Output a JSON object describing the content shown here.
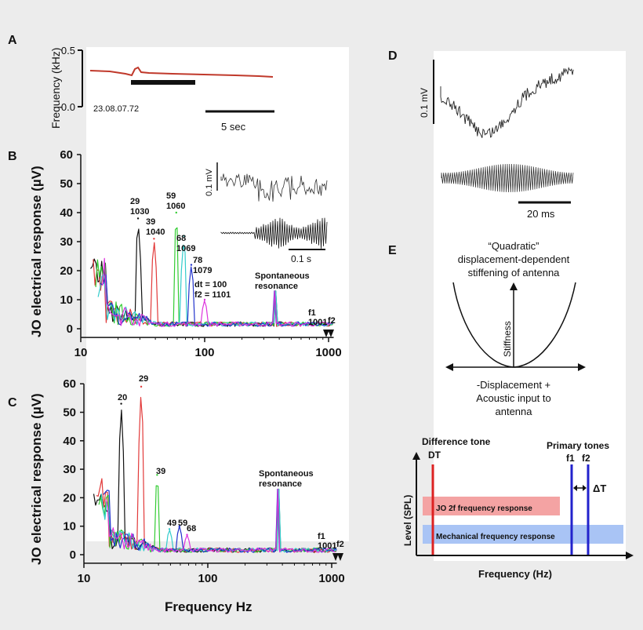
{
  "panels": {
    "A": {
      "letter": "A",
      "ylabel": "Frequency (kHz)",
      "yticks": [
        "0.5",
        "0.0"
      ],
      "recording_id": "23.08.07.72",
      "scale_label": "5 sec",
      "trace_color": "#c0392b"
    },
    "B": {
      "letter": "B",
      "inset_scale_v": "0.1 mV",
      "inset_scale_t": "0.1 s",
      "peak_labels": [
        {
          "n": "29",
          "f": "1030"
        },
        {
          "n": "39",
          "f": "1040"
        },
        {
          "n": "59",
          "f": "1060"
        },
        {
          "n": "68",
          "f": "1069"
        },
        {
          "n": "78",
          "f": "1079"
        }
      ],
      "dt_label": "dt = 100",
      "f2_label": "f2 = 1101",
      "spont_label_1": "Spontaneous",
      "spont_label_2": "resonance",
      "f1_label": "f1",
      "f1_value": "1001",
      "f2_short": "f2"
    },
    "C": {
      "letter": "C",
      "peak_labels": [
        "20",
        "29",
        "39",
        "49",
        "59",
        "68"
      ],
      "spont_label_1": "Spontaneous",
      "spont_label_2": "resonance",
      "f1_label": "f1",
      "f1_value": "1001",
      "f2_short": "f2"
    },
    "D": {
      "letter": "D",
      "scale_v": "0.1 mV",
      "scale_t": "20 ms"
    },
    "E": {
      "letter": "E",
      "title_1": "“Quadratic”",
      "title_2": "displacement-dependent",
      "title_3": "stiffening of antenna",
      "y_axis_label": "Stiffness",
      "x_label_1": "-Displacement +",
      "x_label_2": "Acoustic input to",
      "x_label_3": "antenna",
      "dt_title": "Difference tone",
      "dt_short": "DT",
      "primary_title": "Primary tones",
      "f1": "f1",
      "f2": "f2",
      "delta_t": "ΔT",
      "jo_band": "JO 2f frequency response",
      "mech_band": "Mechanical frequency response",
      "ylabel": "Level (SPL)",
      "xlabel": "Frequency (Hz)",
      "colors": {
        "dt_line": "#dd2222",
        "primary_line": "#2222cc",
        "jo_band": "#f4a3a3",
        "mech_band": "#a9c4f5"
      }
    }
  },
  "chart_data": [
    {
      "id": "B",
      "type": "line",
      "title": "",
      "xlabel": "",
      "ylabel": "JO electrical response (µV)",
      "xscale": "log",
      "xlim": [
        10,
        1100
      ],
      "ylim": [
        -3,
        60
      ],
      "x_ticks": [
        "10",
        "100",
        "1000"
      ],
      "y_ticks": [
        "0",
        "10",
        "20",
        "30",
        "40",
        "50",
        "60"
      ],
      "series": [
        {
          "name": "f2=1030",
          "color": "#111111",
          "peak_x": 29,
          "peak_y": 38
        },
        {
          "name": "f2=1040",
          "color": "#e23a3a",
          "peak_x": 39,
          "peak_y": 31
        },
        {
          "name": "f2=1060",
          "color": "#33cc33",
          "peak_x": 59,
          "peak_y": 40
        },
        {
          "name": "f2=1069",
          "color": "#33cccc",
          "peak_x": 68,
          "peak_y": 32
        },
        {
          "name": "f2=1079",
          "color": "#2233cc",
          "peak_x": 78,
          "peak_y": 22
        },
        {
          "name": "f2=1101",
          "color": "#dd33dd",
          "peak_x": 100,
          "peak_y": 10
        }
      ],
      "spontaneous_resonance_x": 370,
      "spontaneous_resonance_y": 13
    },
    {
      "id": "C",
      "type": "line",
      "title": "",
      "xlabel": "Frequency Hz",
      "ylabel": "JO electrical response (µV)",
      "xscale": "log",
      "xlim": [
        10,
        1100
      ],
      "ylim": [
        -3,
        60
      ],
      "x_ticks": [
        "10",
        "100",
        "1000"
      ],
      "y_ticks": [
        "0",
        "10",
        "20",
        "30",
        "40",
        "50",
        "60"
      ],
      "series": [
        {
          "name": "20",
          "color": "#111111",
          "peak_x": 20,
          "peak_y": 53
        },
        {
          "name": "29",
          "color": "#e23a3a",
          "peak_x": 29,
          "peak_y": 59
        },
        {
          "name": "39",
          "color": "#33cc33",
          "peak_x": 39,
          "peak_y": 28
        },
        {
          "name": "49",
          "color": "#33cccc",
          "peak_x": 49,
          "peak_y": 9
        },
        {
          "name": "59",
          "color": "#2233cc",
          "peak_x": 59,
          "peak_y": 10
        },
        {
          "name": "68",
          "color": "#dd33dd",
          "peak_x": 68,
          "peak_y": 7
        }
      ],
      "spontaneous_resonance_x": 370,
      "spontaneous_resonance_y": 23
    }
  ]
}
